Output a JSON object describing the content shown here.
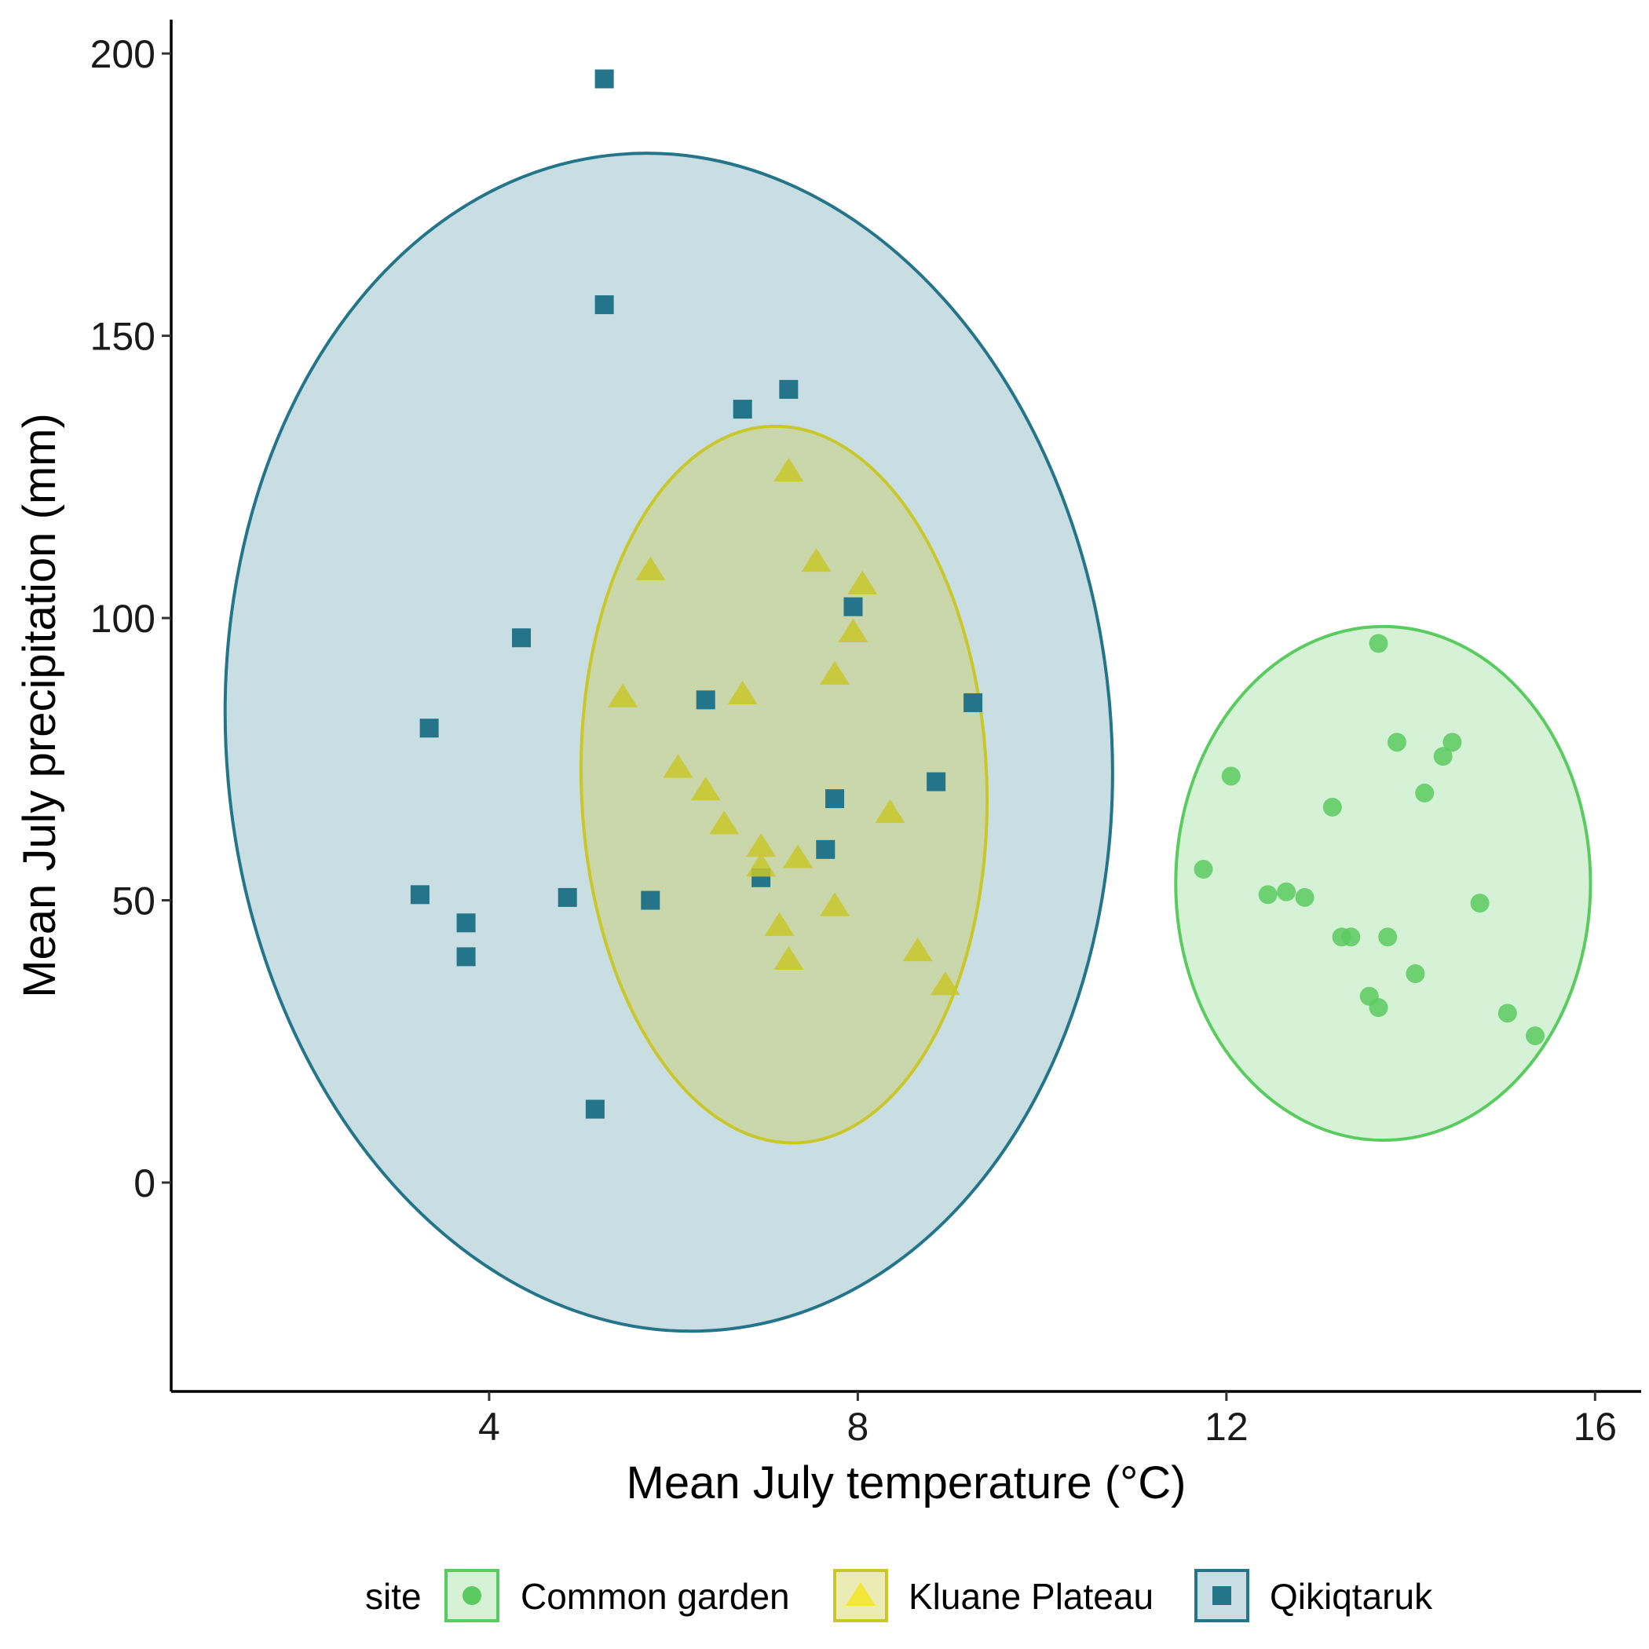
{
  "chart_data": {
    "type": "scatter",
    "xlabel": "Mean July temperature (°C)",
    "ylabel": "Mean July precipitation (mm)",
    "xlim": [
      0.55,
      16.5
    ],
    "ylim": [
      -37,
      206
    ],
    "x_ticks": [
      4,
      8,
      12,
      16
    ],
    "y_ticks": [
      0,
      50,
      100,
      150,
      200
    ],
    "grid": false,
    "legend": {
      "position": "bottom",
      "title": "site",
      "entries": [
        "Common garden",
        "Kluane Plateau",
        "Qikiqtaruk"
      ]
    },
    "series": [
      {
        "name": "Common garden",
        "marker": "circle",
        "color": "#5ACB5F",
        "fill": "#D6F2D6",
        "ellipse": {
          "cx": 13.7,
          "cy": 53,
          "rx": 2.25,
          "ry": 45.5,
          "angle_deg": 0
        },
        "points": [
          [
            13.65,
            95.5
          ],
          [
            13.85,
            78
          ],
          [
            14.45,
            78
          ],
          [
            14.35,
            75.5
          ],
          [
            12.05,
            72
          ],
          [
            14.15,
            69
          ],
          [
            13.15,
            66.5
          ],
          [
            11.75,
            55.5
          ],
          [
            12.45,
            51
          ],
          [
            12.65,
            51.5
          ],
          [
            12.85,
            50.5
          ],
          [
            14.75,
            49.5
          ],
          [
            13.25,
            43.5
          ],
          [
            13.35,
            43.5
          ],
          [
            13.75,
            43.5
          ],
          [
            14.05,
            37
          ],
          [
            13.55,
            33
          ],
          [
            13.65,
            31
          ],
          [
            15.05,
            30
          ],
          [
            15.35,
            26
          ]
        ]
      },
      {
        "name": "Kluane Plateau",
        "marker": "triangle",
        "color": "#C9C72A",
        "fill": "#C9C72A",
        "ellipse": {
          "cx": 7.2,
          "cy": 70.5,
          "rx": 2.2,
          "ry": 63.5,
          "angle_deg": -2
        },
        "points": [
          [
            7.25,
            126
          ],
          [
            7.55,
            110
          ],
          [
            5.75,
            108.5
          ],
          [
            8.05,
            106
          ],
          [
            7.95,
            97.5
          ],
          [
            7.75,
            90
          ],
          [
            5.45,
            86
          ],
          [
            6.75,
            86.5
          ],
          [
            6.05,
            73.5
          ],
          [
            6.35,
            69.5
          ],
          [
            8.35,
            65.5
          ],
          [
            6.55,
            63.5
          ],
          [
            6.95,
            59.5
          ],
          [
            7.35,
            57.5
          ],
          [
            6.95,
            56
          ],
          [
            7.75,
            49
          ],
          [
            7.15,
            45.5
          ],
          [
            8.65,
            41
          ],
          [
            7.25,
            39.5
          ],
          [
            8.95,
            35
          ]
        ]
      },
      {
        "name": "Qikiqtaruk",
        "marker": "square",
        "color": "#24758A",
        "fill": "#C9DEE3",
        "ellipse": {
          "cx": 5.95,
          "cy": 78,
          "rx": 4.8,
          "ry": 104.5,
          "angle_deg": -5
        },
        "points": [
          [
            5.25,
            195.5
          ],
          [
            5.25,
            155.5
          ],
          [
            7.25,
            140.5
          ],
          [
            6.75,
            137
          ],
          [
            7.95,
            102
          ],
          [
            4.35,
            96.5
          ],
          [
            6.35,
            85.5
          ],
          [
            9.25,
            85
          ],
          [
            3.35,
            80.5
          ],
          [
            8.85,
            71
          ],
          [
            7.75,
            68
          ],
          [
            7.65,
            59
          ],
          [
            3.25,
            51
          ],
          [
            4.85,
            50.5
          ],
          [
            5.75,
            50
          ],
          [
            6.95,
            54
          ],
          [
            3.75,
            46
          ],
          [
            3.75,
            40
          ],
          [
            5.15,
            13
          ]
        ]
      }
    ]
  }
}
